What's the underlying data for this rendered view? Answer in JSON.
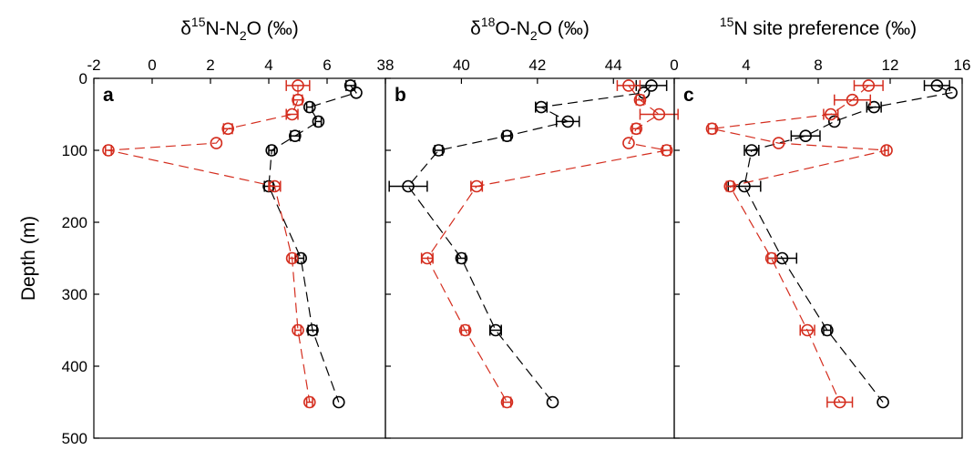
{
  "figure": {
    "ylabel": "Depth (m)",
    "y_ticks": [
      0,
      100,
      200,
      300,
      400,
      500
    ]
  },
  "chart_data": [
    {
      "type": "scatter",
      "panel_label": "a",
      "title_parts": {
        "pre": "δ",
        "sup1": "15",
        "mid": "N-N",
        "sub": "2",
        "post": "O (‰)"
      },
      "x_ticks": [
        -2,
        0,
        2,
        4,
        6
      ],
      "xlim": [
        -2,
        8
      ],
      "ylim": [
        500,
        0
      ],
      "ylabel": "Depth (m)",
      "series": [
        {
          "color": "#000000",
          "points": [
            {
              "x": 6.8,
              "y": 10,
              "err": 0.15
            },
            {
              "x": 7.0,
              "y": 20,
              "err": 0
            },
            {
              "x": 5.4,
              "y": 40,
              "err": 0.1
            },
            {
              "x": 5.7,
              "y": 60,
              "err": 0.1
            },
            {
              "x": 4.9,
              "y": 80,
              "err": 0.15
            },
            {
              "x": 4.1,
              "y": 100,
              "err": 0.1
            },
            {
              "x": 4.0,
              "y": 150,
              "err": 0.15
            },
            {
              "x": 5.1,
              "y": 250,
              "err": 0.1
            },
            {
              "x": 5.5,
              "y": 350,
              "err": 0.15
            },
            {
              "x": 6.4,
              "y": 450,
              "err": 0
            }
          ]
        },
        {
          "color": "#d42d1e",
          "points": [
            {
              "x": 5.0,
              "y": 10,
              "err": 0.4
            },
            {
              "x": 5.0,
              "y": 30,
              "err": 0.15
            },
            {
              "x": 4.8,
              "y": 50,
              "err": 0.2
            },
            {
              "x": 2.6,
              "y": 70,
              "err": 0.15
            },
            {
              "x": 2.2,
              "y": 90,
              "err": 0
            },
            {
              "x": -1.5,
              "y": 100,
              "err": 0.1
            },
            {
              "x": 4.2,
              "y": 150,
              "err": 0.2
            },
            {
              "x": 4.8,
              "y": 250,
              "err": 0.1
            },
            {
              "x": 5.0,
              "y": 350,
              "err": 0.1
            },
            {
              "x": 5.4,
              "y": 450,
              "err": 0.1
            }
          ]
        }
      ]
    },
    {
      "type": "scatter",
      "panel_label": "b",
      "title_parts": {
        "pre": "δ",
        "sup1": "18",
        "mid": "O-N",
        "sub": "2",
        "post": "O (‰)"
      },
      "x_ticks": [
        38,
        40,
        42,
        44
      ],
      "xlim": [
        38,
        45.6
      ],
      "ylim": [
        500,
        0
      ],
      "series": [
        {
          "color": "#000000",
          "points": [
            {
              "x": 45.0,
              "y": 10,
              "err": 0.4
            },
            {
              "x": 44.8,
              "y": 20,
              "err": 0
            },
            {
              "x": 42.1,
              "y": 40,
              "err": 0.15
            },
            {
              "x": 42.8,
              "y": 60,
              "err": 0.3
            },
            {
              "x": 41.2,
              "y": 80,
              "err": 0.1
            },
            {
              "x": 39.4,
              "y": 100,
              "err": 0.1
            },
            {
              "x": 38.6,
              "y": 150,
              "err": 0.5
            },
            {
              "x": 40.0,
              "y": 250,
              "err": 0.1
            },
            {
              "x": 40.9,
              "y": 350,
              "err": 0.15
            },
            {
              "x": 42.4,
              "y": 450,
              "err": 0
            }
          ]
        },
        {
          "color": "#d42d1e",
          "points": [
            {
              "x": 44.4,
              "y": 10,
              "err": 0.3
            },
            {
              "x": 44.7,
              "y": 30,
              "err": 0.1
            },
            {
              "x": 45.2,
              "y": 50,
              "err": 0.5
            },
            {
              "x": 44.6,
              "y": 70,
              "err": 0.1
            },
            {
              "x": 44.4,
              "y": 90,
              "err": 0
            },
            {
              "x": 45.4,
              "y": 100,
              "err": 0.1
            },
            {
              "x": 40.4,
              "y": 150,
              "err": 0.15
            },
            {
              "x": 39.1,
              "y": 250,
              "err": 0.15
            },
            {
              "x": 40.1,
              "y": 350,
              "err": 0.1
            },
            {
              "x": 41.2,
              "y": 450,
              "err": 0.1
            }
          ]
        }
      ]
    },
    {
      "type": "scatter",
      "panel_label": "c",
      "title_parts": {
        "pre": "",
        "sup1": "15",
        "mid": "N site preference (‰)",
        "sub": "",
        "post": ""
      },
      "x_ticks": [
        0,
        4,
        8,
        12,
        16
      ],
      "xlim": [
        0,
        16
      ],
      "ylim": [
        500,
        0
      ],
      "series": [
        {
          "color": "#000000",
          "points": [
            {
              "x": 14.6,
              "y": 10,
              "err": 0.7
            },
            {
              "x": 15.4,
              "y": 20,
              "err": 0
            },
            {
              "x": 11.1,
              "y": 40,
              "err": 0.4
            },
            {
              "x": 8.9,
              "y": 60,
              "err": 0
            },
            {
              "x": 7.3,
              "y": 80,
              "err": 0.8
            },
            {
              "x": 4.3,
              "y": 100,
              "err": 0.4
            },
            {
              "x": 3.9,
              "y": 150,
              "err": 0.9
            },
            {
              "x": 6.0,
              "y": 250,
              "err": 0.8
            },
            {
              "x": 8.5,
              "y": 350,
              "err": 0.2
            },
            {
              "x": 11.6,
              "y": 450,
              "err": 0
            }
          ]
        },
        {
          "color": "#d42d1e",
          "points": [
            {
              "x": 10.8,
              "y": 10,
              "err": 0.8
            },
            {
              "x": 9.9,
              "y": 30,
              "err": 1.0
            },
            {
              "x": 8.7,
              "y": 50,
              "err": 0.4
            },
            {
              "x": 2.1,
              "y": 70,
              "err": 0.2
            },
            {
              "x": 5.8,
              "y": 90,
              "err": 0
            },
            {
              "x": 11.8,
              "y": 100,
              "err": 0.1
            },
            {
              "x": 3.1,
              "y": 150,
              "err": 0.2
            },
            {
              "x": 5.4,
              "y": 250,
              "err": 0.2
            },
            {
              "x": 7.4,
              "y": 350,
              "err": 0.4
            },
            {
              "x": 9.2,
              "y": 450,
              "err": 0.7
            }
          ]
        }
      ]
    }
  ]
}
